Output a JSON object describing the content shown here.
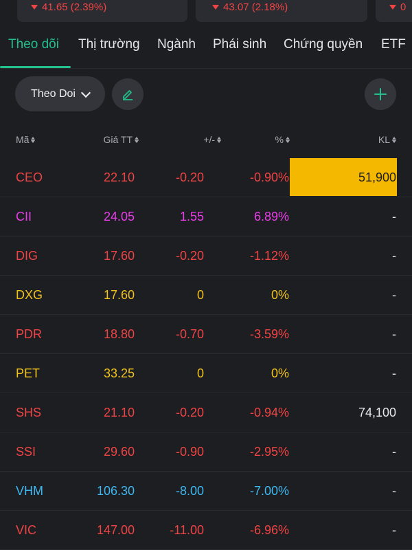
{
  "index_cards": [
    {
      "change": "41.65 (2.39%)"
    },
    {
      "change": "43.07 (2.18%)"
    },
    {
      "change": "0"
    }
  ],
  "tabs": [
    "Theo dõi",
    "Thị trường",
    "Ngành",
    "Phái sinh",
    "Chứng quyền",
    "ETF"
  ],
  "active_tab": "Theo dõi",
  "watchlist": {
    "selected": "Theo Doi"
  },
  "icons": {
    "edit": "pencil-icon",
    "add": "plus-icon",
    "dropdown": "chevron-down-icon",
    "sort": "sort-icon",
    "down": "down-triangle-icon"
  },
  "colors": {
    "accent": "#22c08a",
    "down": "#ef4444",
    "up": "#e83ee8",
    "ref": "#f1c21b",
    "floor": "#3fb7f0",
    "highlight": "#f5b800"
  },
  "table": {
    "headers": [
      "Mã",
      "Giá TT",
      "+/-",
      "%",
      "KL"
    ],
    "rows": [
      {
        "code": "CEO",
        "price": "22.10",
        "change": "-0.20",
        "pct": "-0.90%",
        "vol": "51,900",
        "status": "down",
        "highlight": true
      },
      {
        "code": "CII",
        "price": "24.05",
        "change": "1.55",
        "pct": "6.89%",
        "vol": "-",
        "status": "ceiling"
      },
      {
        "code": "DIG",
        "price": "17.60",
        "change": "-0.20",
        "pct": "-1.12%",
        "vol": "-",
        "status": "down"
      },
      {
        "code": "DXG",
        "price": "17.60",
        "change": "0",
        "pct": "0%",
        "vol": "-",
        "status": "ref"
      },
      {
        "code": "PDR",
        "price": "18.80",
        "change": "-0.70",
        "pct": "-3.59%",
        "vol": "-",
        "status": "down"
      },
      {
        "code": "PET",
        "price": "33.25",
        "change": "0",
        "pct": "0%",
        "vol": "-",
        "status": "ref"
      },
      {
        "code": "SHS",
        "price": "21.10",
        "change": "-0.20",
        "pct": "-0.94%",
        "vol": "74,100",
        "status": "down"
      },
      {
        "code": "SSI",
        "price": "29.60",
        "change": "-0.90",
        "pct": "-2.95%",
        "vol": "-",
        "status": "down"
      },
      {
        "code": "VHM",
        "price": "106.30",
        "change": "-8.00",
        "pct": "-7.00%",
        "vol": "-",
        "status": "floor"
      },
      {
        "code": "VIC",
        "price": "147.00",
        "change": "-11.00",
        "pct": "-6.96%",
        "vol": "-",
        "status": "down"
      }
    ]
  }
}
